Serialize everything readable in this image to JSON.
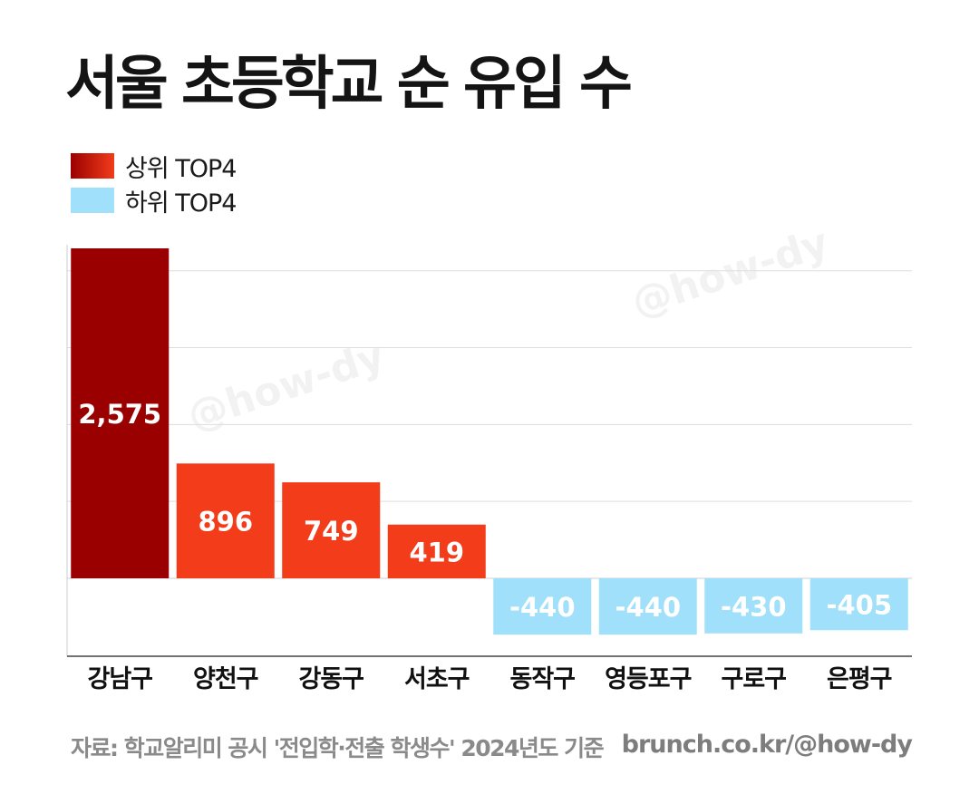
{
  "title": "서울 초등학교 순 유입 수",
  "legend": [
    {
      "label": "상위 TOP4",
      "color": "#9b0000",
      "color2": "#f23c1a"
    },
    {
      "label": "하위 TOP4",
      "color": "#a0e0fb"
    }
  ],
  "watermark": "@how-dy",
  "chart_data": {
    "type": "bar",
    "categories": [
      "강남구",
      "양천구",
      "강동구",
      "서초구",
      "동작구",
      "영등포구",
      "구로구",
      "은평구"
    ],
    "values": [
      2575,
      896,
      749,
      419,
      -440,
      -440,
      -430,
      -405
    ],
    "value_labels": [
      "2,575",
      "896",
      "749",
      "419",
      "-440",
      "-440",
      "-430",
      "-405"
    ],
    "colors": [
      "#9a0000",
      "#f23c1a",
      "#f23c1a",
      "#f23c1a",
      "#a0e0fb",
      "#a0e0fb",
      "#a0e0fb",
      "#a0e0fb"
    ],
    "title": "서울 초등학교 순 유입 수",
    "xlabel": "",
    "ylabel": "",
    "ylim": [
      -600,
      2600
    ],
    "gridlines": [
      0,
      600,
      1200,
      1800,
      2400
    ],
    "grid": true,
    "legend_position": "top-left"
  },
  "footer": {
    "source": "자료: 학교알리미 공시 '전입학·전출 학생수' 2024년도 기준",
    "credit": "brunch.co.kr/@how-dy"
  }
}
